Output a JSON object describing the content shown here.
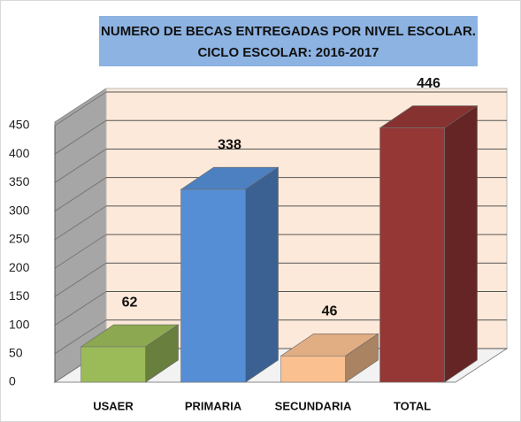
{
  "chart_data": {
    "type": "bar3d",
    "title": "NUMERO DE BECAS ENTREGADAS POR NIVEL ESCOLAR.",
    "subtitle": "CICLO ESCOLAR: 2016-2017",
    "categories": [
      "USAER",
      "PRIMARIA",
      "SECUNDARIA",
      "TOTAL"
    ],
    "values": [
      62,
      338,
      46,
      446
    ],
    "colors": [
      "#9bbb59",
      "#558ed5",
      "#fac090",
      "#953735"
    ],
    "ylim": [
      0,
      450
    ],
    "yticks": [
      0,
      50,
      100,
      150,
      200,
      250,
      300,
      350,
      400,
      450
    ],
    "grid": true
  }
}
